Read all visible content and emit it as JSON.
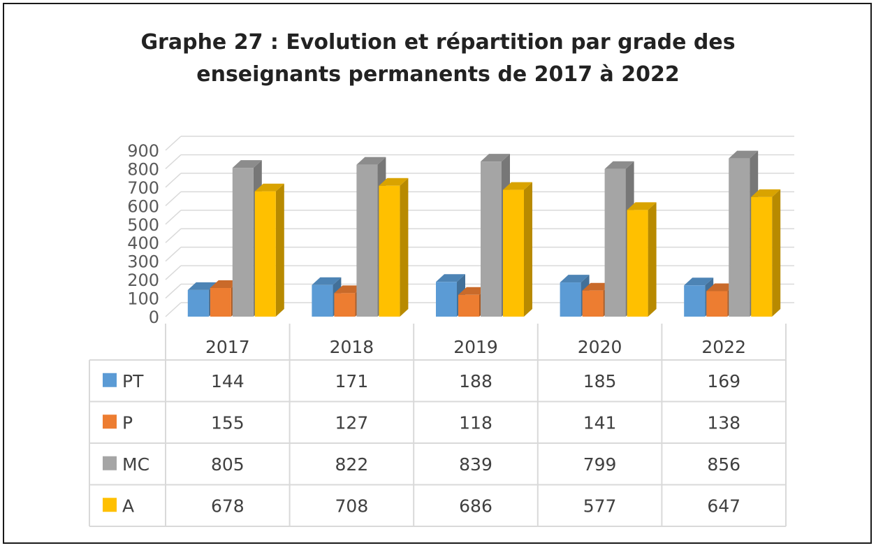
{
  "title": {
    "line1": "Graphe 27 : Evolution et répartition par grade des",
    "line2": "enseignants permanents de 2017 à 2022"
  },
  "chart_data": {
    "type": "bar",
    "style": "3d-clustered-column with data table",
    "categories": [
      "2017",
      "2018",
      "2019",
      "2020",
      "2022"
    ],
    "series": [
      {
        "name": "PT",
        "color": "#5B9BD5",
        "values": [
          144,
          171,
          188,
          185,
          169
        ]
      },
      {
        "name": "P",
        "color": "#ED7D31",
        "values": [
          155,
          127,
          118,
          141,
          138
        ]
      },
      {
        "name": "MC",
        "color": "#A5A5A5",
        "values": [
          805,
          822,
          839,
          799,
          856
        ]
      },
      {
        "name": "A",
        "color": "#FFC000",
        "values": [
          678,
          708,
          686,
          577,
          647
        ]
      }
    ],
    "ylim": [
      0,
      900
    ],
    "yticks": [
      "0",
      "100",
      "200",
      "300",
      "400",
      "500",
      "600",
      "700",
      "800",
      "900"
    ],
    "grid": true,
    "legend": "data table"
  }
}
